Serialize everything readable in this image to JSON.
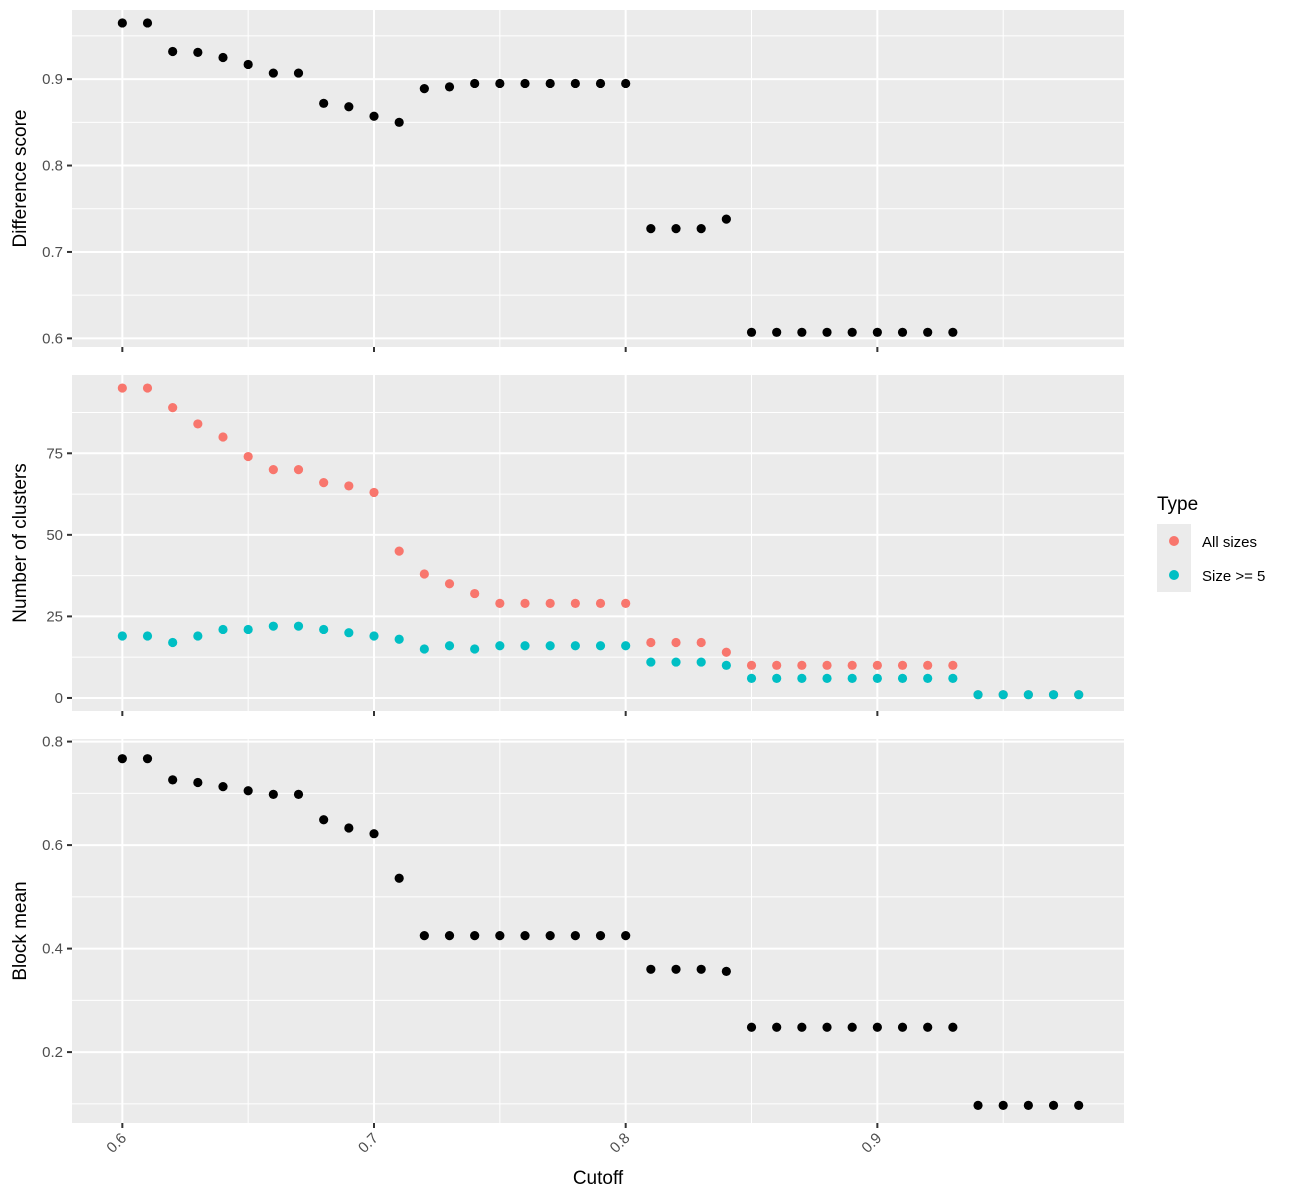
{
  "chart_data": {
    "type": "scatter",
    "xlabel": "Cutoff",
    "x_ticks": [
      "0.6",
      "0.7",
      "0.8",
      "0.9"
    ],
    "xlim": [
      0.58,
      0.998
    ],
    "grid": true,
    "legend": {
      "title": "Type",
      "placement": "right",
      "entries": [
        {
          "label": "All sizes",
          "color": "#F8766D"
        },
        {
          "label": "Size >= 5",
          "color": "#00BFC4"
        }
      ]
    },
    "panels": [
      {
        "ylabel": "Difference score",
        "ylim": [
          0.59,
          0.98
        ],
        "y_ticks": [
          "0.6",
          "0.7",
          "0.8",
          "0.9"
        ],
        "y_minor": [
          0.65,
          0.75,
          0.85,
          0.95
        ],
        "series": [
          {
            "color": "#000000",
            "x": [
              0.6,
              0.61,
              0.62,
              0.63,
              0.64,
              0.65,
              0.66,
              0.67,
              0.68,
              0.69,
              0.7,
              0.71,
              0.72,
              0.73,
              0.74,
              0.75,
              0.76,
              0.77,
              0.78,
              0.79,
              0.8,
              0.81,
              0.82,
              0.83,
              0.84,
              0.85,
              0.86,
              0.87,
              0.88,
              0.89,
              0.9,
              0.91,
              0.92,
              0.93
            ],
            "y": [
              0.965,
              0.965,
              0.932,
              0.931,
              0.925,
              0.917,
              0.907,
              0.907,
              0.872,
              0.868,
              0.857,
              0.85,
              0.889,
              0.891,
              0.895,
              0.895,
              0.895,
              0.895,
              0.895,
              0.895,
              0.895,
              0.727,
              0.727,
              0.727,
              0.738,
              0.607,
              0.607,
              0.607,
              0.607,
              0.607,
              0.607,
              0.607,
              0.607,
              0.607
            ]
          }
        ]
      },
      {
        "ylabel": "Number of clusters",
        "ylim": [
          -4,
          99
        ],
        "y_ticks": [
          "0",
          "25",
          "50",
          "75"
        ],
        "y_minor": [
          12.5,
          37.5,
          62.5,
          87.5
        ],
        "series": [
          {
            "name": "All sizes",
            "color": "#F8766D",
            "x": [
              0.6,
              0.61,
              0.62,
              0.63,
              0.64,
              0.65,
              0.66,
              0.67,
              0.68,
              0.69,
              0.7,
              0.71,
              0.72,
              0.73,
              0.74,
              0.75,
              0.76,
              0.77,
              0.78,
              0.79,
              0.8,
              0.81,
              0.82,
              0.83,
              0.84,
              0.85,
              0.86,
              0.87,
              0.88,
              0.89,
              0.9,
              0.91,
              0.92,
              0.93,
              0.94,
              0.95,
              0.96,
              0.97,
              0.98
            ],
            "y": [
              95,
              95,
              89,
              84,
              80,
              74,
              70,
              70,
              66,
              65,
              63,
              45,
              38,
              35,
              32,
              29,
              29,
              29,
              29,
              29,
              29,
              17,
              17,
              17,
              14,
              10,
              10,
              10,
              10,
              10,
              10,
              10,
              10,
              10,
              1,
              1,
              1,
              1,
              1
            ]
          },
          {
            "name": "Size >= 5",
            "color": "#00BFC4",
            "x": [
              0.6,
              0.61,
              0.62,
              0.63,
              0.64,
              0.65,
              0.66,
              0.67,
              0.68,
              0.69,
              0.7,
              0.71,
              0.72,
              0.73,
              0.74,
              0.75,
              0.76,
              0.77,
              0.78,
              0.79,
              0.8,
              0.81,
              0.82,
              0.83,
              0.84,
              0.85,
              0.86,
              0.87,
              0.88,
              0.89,
              0.9,
              0.91,
              0.92,
              0.93,
              0.94,
              0.95,
              0.96,
              0.97,
              0.98
            ],
            "y": [
              19,
              19,
              17,
              19,
              21,
              21,
              22,
              22,
              21,
              20,
              19,
              18,
              15,
              16,
              15,
              16,
              16,
              16,
              16,
              16,
              16,
              11,
              11,
              11,
              10,
              6,
              6,
              6,
              6,
              6,
              6,
              6,
              6,
              6,
              1,
              1,
              1,
              1,
              1
            ]
          }
        ]
      },
      {
        "ylabel": "Block mean",
        "ylim": [
          0.063,
          0.805
        ],
        "y_ticks": [
          "0.2",
          "0.4",
          "0.6",
          "0.8"
        ],
        "y_minor": [
          0.1,
          0.3,
          0.5,
          0.7
        ],
        "series": [
          {
            "color": "#000000",
            "x": [
              0.6,
              0.61,
              0.62,
              0.63,
              0.64,
              0.65,
              0.66,
              0.67,
              0.68,
              0.69,
              0.7,
              0.71,
              0.72,
              0.73,
              0.74,
              0.75,
              0.76,
              0.77,
              0.78,
              0.79,
              0.8,
              0.81,
              0.82,
              0.83,
              0.84,
              0.85,
              0.86,
              0.87,
              0.88,
              0.89,
              0.9,
              0.91,
              0.92,
              0.93,
              0.94,
              0.95,
              0.96,
              0.97,
              0.98
            ],
            "y": [
              0.767,
              0.767,
              0.726,
              0.721,
              0.713,
              0.705,
              0.698,
              0.698,
              0.649,
              0.633,
              0.622,
              0.536,
              0.425,
              0.425,
              0.425,
              0.425,
              0.425,
              0.425,
              0.425,
              0.425,
              0.425,
              0.36,
              0.36,
              0.36,
              0.356,
              0.248,
              0.248,
              0.248,
              0.248,
              0.248,
              0.248,
              0.248,
              0.248,
              0.248,
              0.097,
              0.097,
              0.097,
              0.097,
              0.097
            ]
          }
        ]
      }
    ]
  }
}
